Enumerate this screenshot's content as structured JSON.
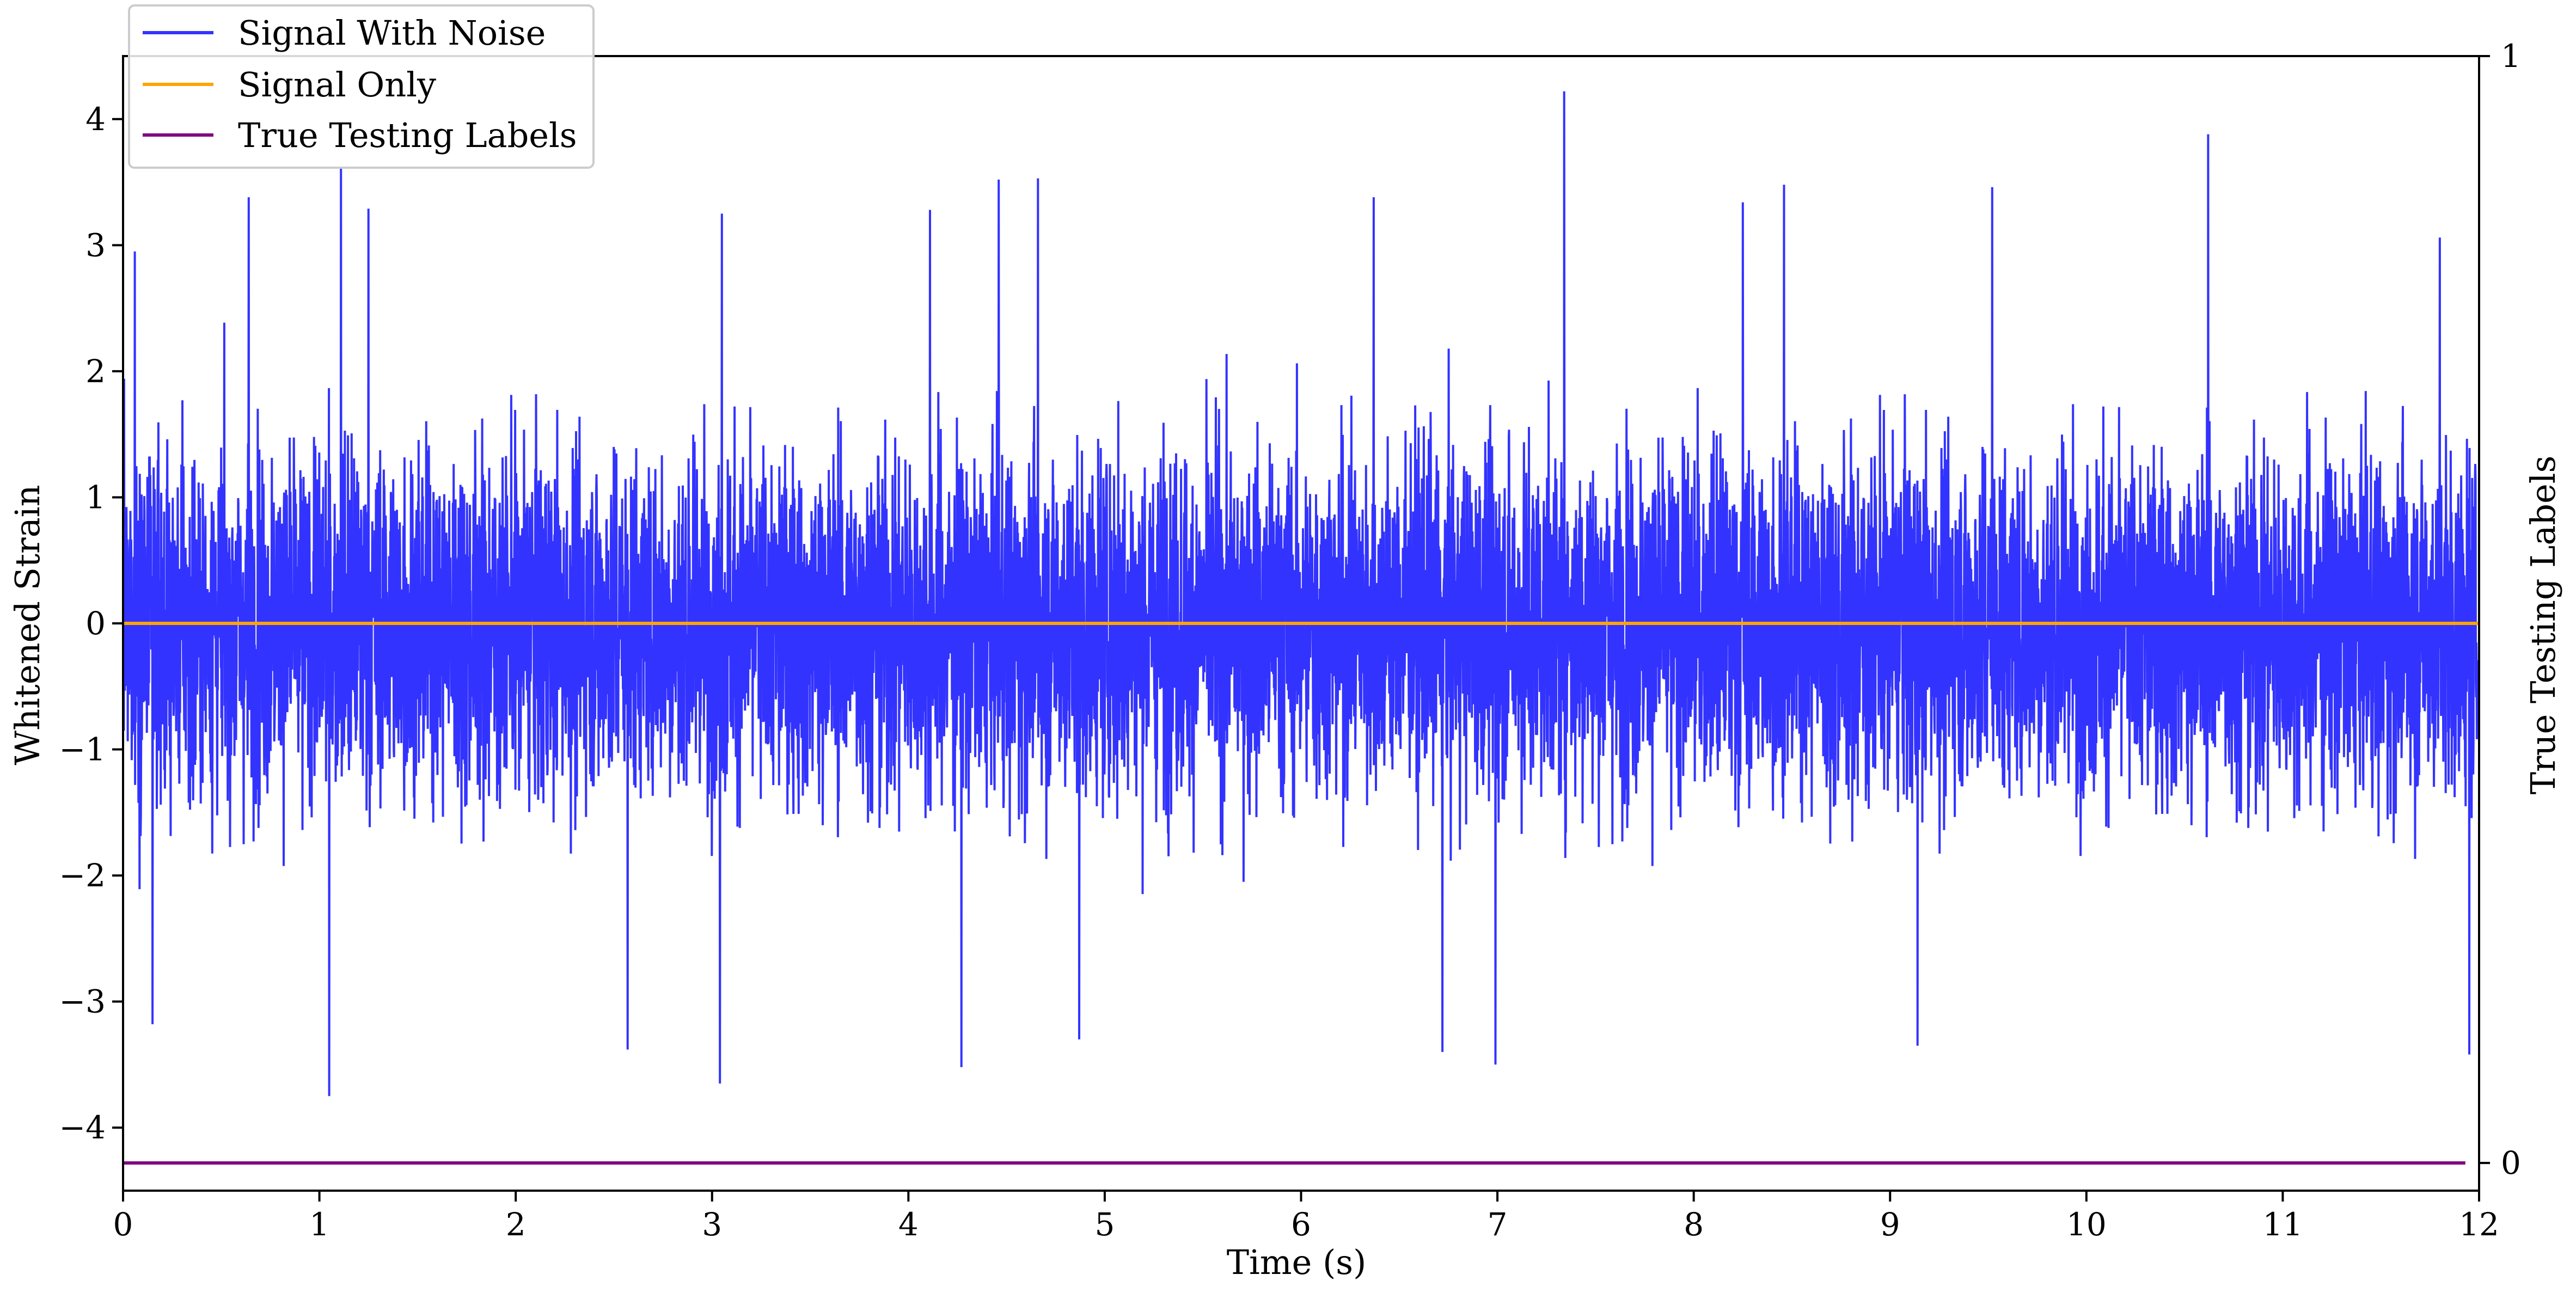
{
  "chart_data": {
    "type": "line",
    "xlabel": "Time (s)",
    "ylabel": "Whitened Strain",
    "ylabel_right": "True Testing Labels",
    "xlim": [
      0,
      12
    ],
    "ylim": [
      -4.5,
      4.5
    ],
    "ylim_right": [
      -0.025,
      1.0
    ],
    "x_ticks": [
      0,
      1,
      2,
      3,
      4,
      5,
      6,
      7,
      8,
      9,
      10,
      11,
      12
    ],
    "y_ticks": [
      -4,
      -3,
      -2,
      -1,
      0,
      1,
      2,
      3,
      4
    ],
    "y_tick_labels": [
      "−4",
      "−3",
      "−2",
      "−1",
      "0",
      "1",
      "2",
      "3",
      "4"
    ],
    "y_ticks_right": [
      0,
      1
    ],
    "grid": false,
    "legend_position": "top-left",
    "legend": [
      "Signal With Noise",
      "Signal Only",
      "True Testing Labels"
    ],
    "series": [
      {
        "name": "Signal With Noise",
        "axis": "left",
        "color": "#3333ff",
        "x_range": [
          0,
          11.99
        ],
        "typical_envelope": [
          -2.3,
          2.3
        ],
        "peaks": [
          {
            "x": 0.06,
            "y": 2.95
          },
          {
            "x": 0.64,
            "y": 3.38
          },
          {
            "x": 1.11,
            "y": 3.62
          },
          {
            "x": 1.25,
            "y": 3.29
          },
          {
            "x": 3.05,
            "y": 3.25
          },
          {
            "x": 4.11,
            "y": 3.28
          },
          {
            "x": 4.46,
            "y": 3.52
          },
          {
            "x": 4.66,
            "y": 3.53
          },
          {
            "x": 6.37,
            "y": 3.38
          },
          {
            "x": 7.34,
            "y": 4.22
          },
          {
            "x": 8.25,
            "y": 3.34
          },
          {
            "x": 8.46,
            "y": 3.48
          },
          {
            "x": 9.52,
            "y": 3.46
          },
          {
            "x": 10.62,
            "y": 3.88
          },
          {
            "x": 11.8,
            "y": 3.06
          }
        ],
        "troughs": [
          {
            "x": 1.05,
            "y": -3.75
          },
          {
            "x": 0.15,
            "y": -3.18
          },
          {
            "x": 2.57,
            "y": -3.38
          },
          {
            "x": 3.04,
            "y": -3.65
          },
          {
            "x": 4.27,
            "y": -3.52
          },
          {
            "x": 4.87,
            "y": -3.3
          },
          {
            "x": 6.72,
            "y": -3.4
          },
          {
            "x": 6.99,
            "y": -3.5
          },
          {
            "x": 9.14,
            "y": -3.35
          },
          {
            "x": 11.95,
            "y": -3.42
          }
        ]
      },
      {
        "name": "Signal Only",
        "axis": "left",
        "color": "#ffa500",
        "x": [
          0,
          12
        ],
        "y": [
          0,
          0
        ]
      },
      {
        "name": "True Testing Labels",
        "axis": "right",
        "color": "#800080",
        "x": [
          0,
          11.93
        ],
        "y": [
          0,
          0
        ]
      }
    ]
  }
}
